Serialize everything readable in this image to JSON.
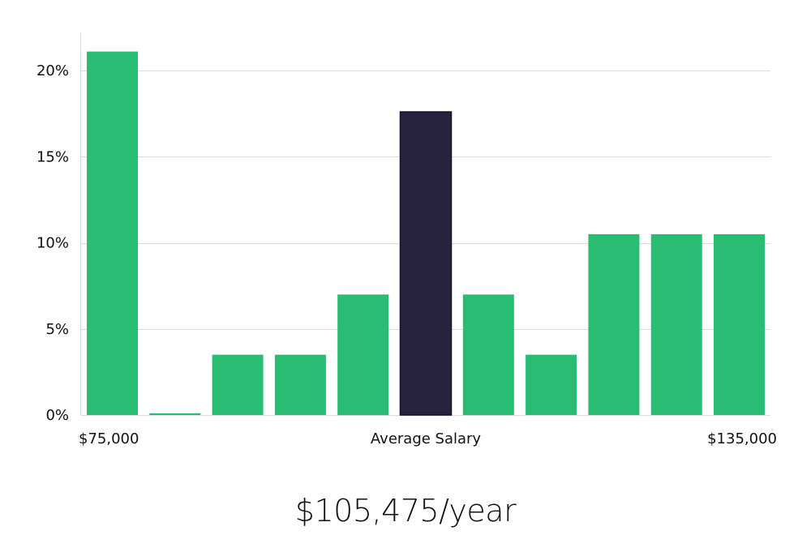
{
  "chart_data": {
    "type": "bar",
    "title": "",
    "xlabel": "Average Salary",
    "ylabel": "",
    "x_start_label": "$75,000",
    "x_end_label": "$135,000",
    "ylim": [
      0,
      22
    ],
    "yticks": [
      {
        "value": 0,
        "label": "0%"
      },
      {
        "value": 5,
        "label": "5%"
      },
      {
        "value": 10,
        "label": "10%"
      },
      {
        "value": 15,
        "label": "15%"
      },
      {
        "value": 20,
        "label": "20%"
      }
    ],
    "values": [
      21.1,
      0.1,
      3.5,
      3.5,
      7.0,
      17.6,
      7.0,
      3.5,
      10.5,
      10.5,
      10.5
    ],
    "highlight_index": 5,
    "bar_color": "#28bd73",
    "highlight_color": "#27233f",
    "grid": true
  },
  "summary": {
    "average_salary": "$105,475/year"
  }
}
